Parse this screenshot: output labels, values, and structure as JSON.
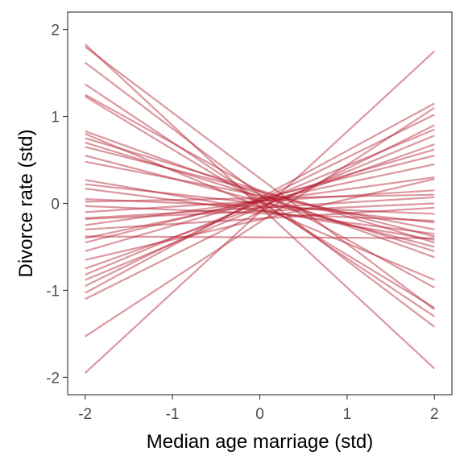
{
  "chart_data": {
    "type": "line",
    "xlabel": "Median age marriage (std)",
    "ylabel": "Divorce rate (std)",
    "xlim": [
      -2.2,
      2.2
    ],
    "ylim": [
      -2.2,
      2.2
    ],
    "x_ticks": [
      -2,
      -1,
      0,
      1,
      2
    ],
    "y_ticks": [
      -2,
      -1,
      0,
      1,
      2
    ],
    "x_tick_labels": [
      "-2",
      "-1",
      "0",
      "1",
      "2"
    ],
    "y_tick_labels": [
      "-2",
      "-1",
      "0",
      "1",
      "2"
    ],
    "grid": false,
    "legend": "none",
    "line_color": "#b2182b",
    "line_opacity": 0.45,
    "series": [
      {
        "x": [
          -2,
          2
        ],
        "y": [
          1.83,
          -1.9
        ]
      },
      {
        "x": [
          -2,
          2
        ],
        "y": [
          1.8,
          -1.22
        ]
      },
      {
        "x": [
          -2,
          2
        ],
        "y": [
          1.62,
          -1.42
        ]
      },
      {
        "x": [
          -2,
          2
        ],
        "y": [
          1.37,
          -1.3
        ]
      },
      {
        "x": [
          -2,
          2
        ],
        "y": [
          1.25,
          -0.97
        ]
      },
      {
        "x": [
          -2,
          2
        ],
        "y": [
          1.23,
          -1.2
        ]
      },
      {
        "x": [
          -2,
          2
        ],
        "y": [
          0.83,
          -0.62
        ]
      },
      {
        "x": [
          -2,
          2
        ],
        "y": [
          0.8,
          -0.88
        ]
      },
      {
        "x": [
          -2,
          2
        ],
        "y": [
          0.75,
          -0.45
        ]
      },
      {
        "x": [
          -2,
          2
        ],
        "y": [
          0.7,
          -0.55
        ]
      },
      {
        "x": [
          -2,
          2
        ],
        "y": [
          0.65,
          -0.38
        ]
      },
      {
        "x": [
          -2,
          2
        ],
        "y": [
          0.55,
          -0.5
        ]
      },
      {
        "x": [
          -2,
          2
        ],
        "y": [
          0.48,
          -0.3
        ]
      },
      {
        "x": [
          -2,
          2
        ],
        "y": [
          0.27,
          -0.42
        ]
      },
      {
        "x": [
          -2,
          2
        ],
        "y": [
          0.22,
          -0.22
        ]
      },
      {
        "x": [
          -2,
          2
        ],
        "y": [
          0.17,
          -0.35
        ]
      },
      {
        "x": [
          -2,
          2
        ],
        "y": [
          0.05,
          -0.12
        ]
      },
      {
        "x": [
          -2,
          2
        ],
        "y": [
          0.02,
          0.1
        ]
      },
      {
        "x": [
          -2,
          2
        ],
        "y": [
          -0.03,
          -0.2
        ]
      },
      {
        "x": [
          -2,
          2
        ],
        "y": [
          -0.1,
          0.15
        ]
      },
      {
        "x": [
          -2,
          2
        ],
        "y": [
          -0.17,
          0.07
        ]
      },
      {
        "x": [
          -2,
          2
        ],
        "y": [
          -0.18,
          0.0
        ]
      },
      {
        "x": [
          -2,
          2
        ],
        "y": [
          -0.25,
          0.3
        ]
      },
      {
        "x": [
          -2,
          2
        ],
        "y": [
          -0.3,
          -0.05
        ]
      },
      {
        "x": [
          -2,
          2
        ],
        "y": [
          -0.38,
          -0.4
        ]
      },
      {
        "x": [
          -2,
          2
        ],
        "y": [
          -0.4,
          0.45
        ]
      },
      {
        "x": [
          -2,
          2
        ],
        "y": [
          -0.45,
          0.55
        ]
      },
      {
        "x": [
          -2,
          2
        ],
        "y": [
          -0.55,
          0.62
        ]
      },
      {
        "x": [
          -2,
          2
        ],
        "y": [
          -0.65,
          0.28
        ]
      },
      {
        "x": [
          -2,
          2
        ],
        "y": [
          -0.75,
          0.68
        ]
      },
      {
        "x": [
          -2,
          2
        ],
        "y": [
          -0.82,
          0.85
        ]
      },
      {
        "x": [
          -2,
          2
        ],
        "y": [
          -0.88,
          0.78
        ]
      },
      {
        "x": [
          -2,
          2
        ],
        "y": [
          -0.95,
          1.02
        ]
      },
      {
        "x": [
          -2,
          2
        ],
        "y": [
          -1.03,
          1.15
        ]
      },
      {
        "x": [
          -2,
          2
        ],
        "y": [
          -1.1,
          0.9
        ]
      },
      {
        "x": [
          -2,
          2
        ],
        "y": [
          -1.53,
          1.1
        ]
      },
      {
        "x": [
          -2,
          2
        ],
        "y": [
          -1.95,
          1.75
        ]
      }
    ]
  }
}
